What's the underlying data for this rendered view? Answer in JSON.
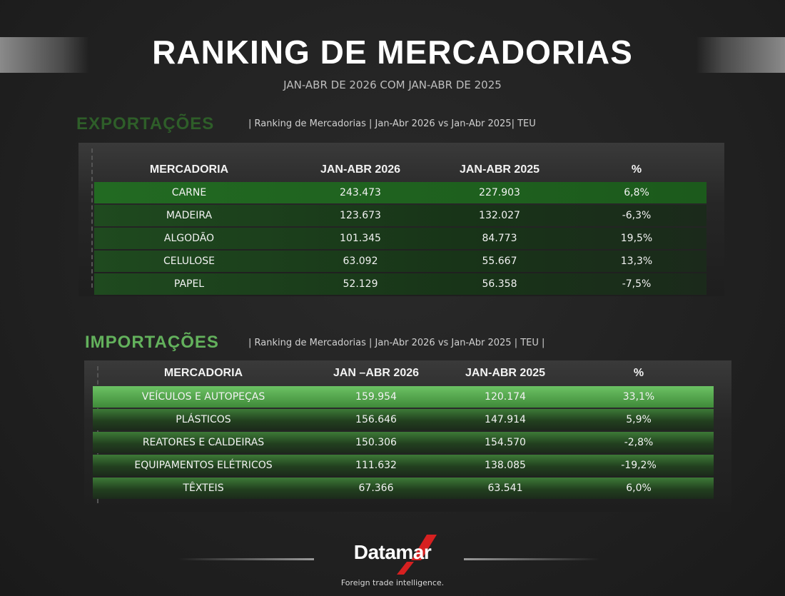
{
  "header": {
    "title": "RANKING DE MERCADORIAS",
    "subtitle": "JAN-ABR DE 2026 COM JAN-ABR DE 2025"
  },
  "exports": {
    "title": "EXPORTAÇÕES",
    "caption": "| Ranking de Mercadorias | Jan-Abr 2026 vs Jan-Abr 2025| TEU",
    "table": {
      "header": [
        "MERCADORIA",
        "JAN-ABR 2026",
        "JAN-ABR 2025",
        "%"
      ],
      "rows": [
        [
          "CARNE",
          "243.473",
          "227.903",
          "6,8%"
        ],
        [
          "MADEIRA",
          "123.673",
          "132.027",
          "-6,3%"
        ],
        [
          "ALGODÃO",
          "101.345",
          "84.773",
          "19,5%"
        ],
        [
          "CELULOSE",
          "63.092",
          "55.667",
          "13,3%"
        ],
        [
          "PAPEL",
          "52.129",
          "56.358",
          "-7,5%"
        ]
      ]
    }
  },
  "imports": {
    "title": "IMPORTAÇÕES",
    "caption": "| Ranking de Mercadorias | Jan-Abr 2026 vs Jan-Abr 2025 | TEU |",
    "table": {
      "header": [
        "MERCADORIA",
        "JAN –ABR 2026",
        "JAN-ABR 2025",
        "%"
      ],
      "rows": [
        [
          "VEÍCULOS E AUTOPEÇAS",
          "159.954",
          "120.174",
          "33,1%"
        ],
        [
          "PLÁSTICOS",
          "156.646",
          "147.914",
          "5,9%"
        ],
        [
          "REATORES E CALDEIRAS",
          "150.306",
          "154.570",
          "-2,8%"
        ],
        [
          "EQUIPAMENTOS ELÉTRICOS",
          "111.632",
          "138.085",
          "-19,2%"
        ],
        [
          "TÊXTEIS",
          "67.366",
          "63.541",
          "6,0%"
        ]
      ]
    }
  },
  "footer": {
    "brand": "Datamar",
    "tagline": "Foreign trade intelligence."
  }
}
